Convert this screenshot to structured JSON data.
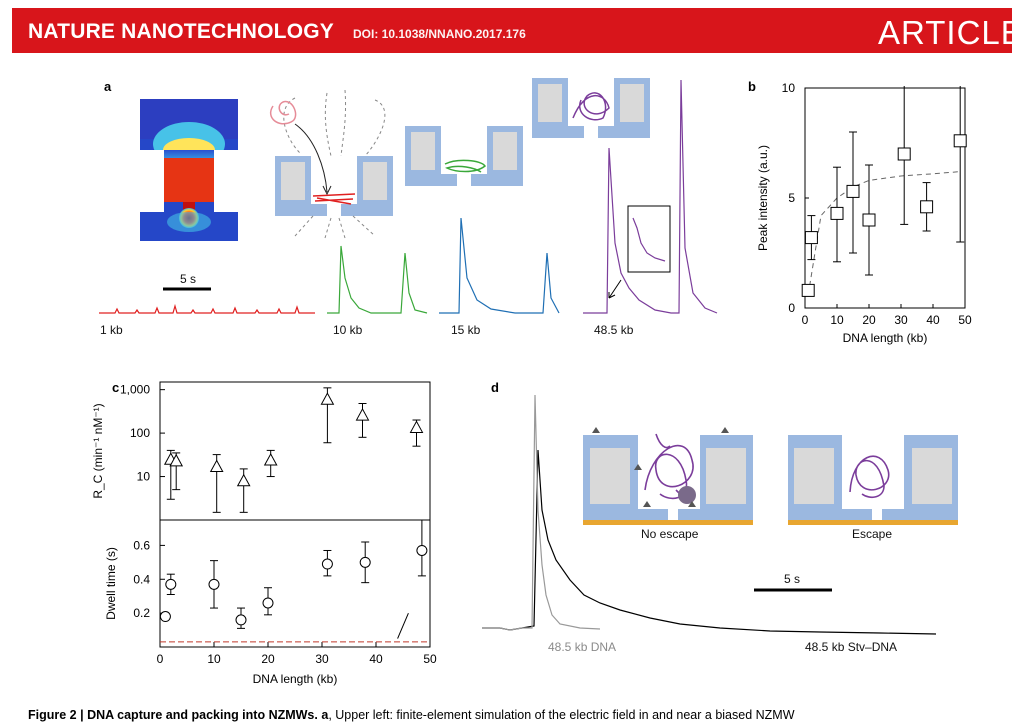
{
  "header": {
    "journal": "NATURE NANOTECHNOLOGY",
    "doi": "DOI: 10.1038/NNANO.2017.176",
    "section": "ARTICLES"
  },
  "panel_a": {
    "label": "a",
    "scale_bar": "5 s",
    "traces": [
      {
        "label": "1 kb",
        "color": "#e02020"
      },
      {
        "label": "10 kb",
        "color": "#3aa83a"
      },
      {
        "label": "15 kb",
        "color": "#1f6fb4"
      },
      {
        "label": "48.5 kb",
        "color": "#7b3d9b"
      }
    ]
  },
  "panel_b": {
    "label": "b",
    "chart_data": {
      "type": "scatter",
      "xlabel": "DNA length (kb)",
      "ylabel": "Peak intensity (a.u.)",
      "xlim": [
        0,
        50
      ],
      "ylim": [
        0,
        10
      ],
      "xticks": [
        "0",
        "10",
        "20",
        "30",
        "40",
        "50"
      ],
      "yticks": [
        "0",
        "5",
        "10"
      ],
      "points": [
        {
          "x": 1,
          "y": 0.8,
          "lo": 0.6,
          "hi": 1.0
        },
        {
          "x": 2,
          "y": 3.2,
          "lo": 2.2,
          "hi": 4.2
        },
        {
          "x": 10,
          "y": 4.3,
          "lo": 2.1,
          "hi": 6.4
        },
        {
          "x": 15,
          "y": 5.3,
          "lo": 2.5,
          "hi": 8.0
        },
        {
          "x": 20,
          "y": 4.0,
          "lo": 1.5,
          "hi": 6.5
        },
        {
          "x": 31,
          "y": 7.0,
          "lo": 3.8,
          "hi": 10.2
        },
        {
          "x": 38,
          "y": 4.6,
          "lo": 3.5,
          "hi": 5.7
        },
        {
          "x": 48.5,
          "y": 7.6,
          "lo": 3.0,
          "hi": 11.0
        }
      ],
      "fit": {
        "x": [
          1,
          5,
          10,
          15,
          20,
          30,
          40,
          48.5
        ],
        "y": [
          0.6,
          4.2,
          5.0,
          5.5,
          5.8,
          6.0,
          6.1,
          6.2
        ]
      }
    }
  },
  "panel_c": {
    "label": "c",
    "chart_data": [
      {
        "type": "scatter",
        "ylabel": "R_C (min⁻¹ nM⁻¹)",
        "yscale": "log",
        "ylim": [
          1,
          1500
        ],
        "yticks": [
          "10",
          "100",
          "1,000"
        ],
        "points": [
          {
            "x": 2,
            "y": 25,
            "lo": 3,
            "hi": 40
          },
          {
            "x": 3,
            "y": 23,
            "lo": 5,
            "hi": 35
          },
          {
            "x": 10.5,
            "y": 17,
            "lo": 1.5,
            "hi": 32
          },
          {
            "x": 15.5,
            "y": 8,
            "lo": 1.5,
            "hi": 15
          },
          {
            "x": 20.5,
            "y": 24,
            "lo": 10,
            "hi": 40
          },
          {
            "x": 31,
            "y": 600,
            "lo": 60,
            "hi": 1100
          },
          {
            "x": 37.5,
            "y": 260,
            "lo": 80,
            "hi": 480
          },
          {
            "x": 47.5,
            "y": 135,
            "lo": 50,
            "hi": 200
          }
        ]
      },
      {
        "type": "scatter",
        "xlabel": "DNA length (kb)",
        "ylabel": "Dwell time (s)",
        "xlim": [
          0,
          50
        ],
        "ylim": [
          0,
          0.75
        ],
        "xticks": [
          "0",
          "10",
          "20",
          "30",
          "40",
          "50"
        ],
        "yticks": [
          "0.2",
          "0.4",
          "0.6"
        ],
        "baseline": 0.03,
        "points": [
          {
            "x": 1,
            "y": 0.18,
            "lo": 0.18,
            "hi": 0.18
          },
          {
            "x": 2,
            "y": 0.37,
            "lo": 0.31,
            "hi": 0.43
          },
          {
            "x": 10,
            "y": 0.37,
            "lo": 0.23,
            "hi": 0.51
          },
          {
            "x": 15,
            "y": 0.16,
            "lo": 0.11,
            "hi": 0.23
          },
          {
            "x": 20,
            "y": 0.26,
            "lo": 0.19,
            "hi": 0.35
          },
          {
            "x": 31,
            "y": 0.49,
            "lo": 0.42,
            "hi": 0.57
          },
          {
            "x": 38,
            "y": 0.5,
            "lo": 0.38,
            "hi": 0.62
          },
          {
            "x": 48.5,
            "y": 0.57,
            "lo": 0.42,
            "hi": 0.75
          }
        ]
      }
    ]
  },
  "panel_d": {
    "label": "d",
    "scale_bar": "5 s",
    "trace_labels": [
      "48.5 kb DNA",
      "48.5 kb Stv–DNA"
    ],
    "scenarios": [
      "No escape",
      "Escape"
    ]
  },
  "caption": {
    "title": "Figure 2 | DNA capture and packing into NZMWs.",
    "panel": "a",
    "text": ", Upper left: finite-element simulation of the electric field in and near a biased NZMW"
  }
}
